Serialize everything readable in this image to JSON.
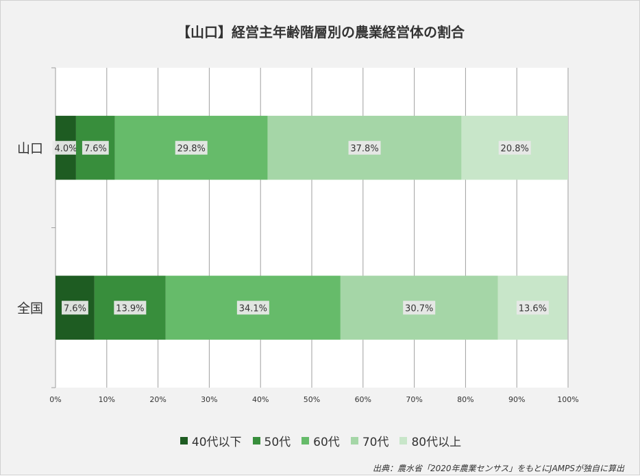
{
  "chart_data": {
    "type": "bar",
    "orientation": "horizontal",
    "stacked": true,
    "percent": true,
    "title": "【山口】経営主年齢階層別の農業経営体の割合",
    "categories": [
      "山口",
      "全国"
    ],
    "series": [
      {
        "name": "40代以下",
        "values": [
          4.0,
          7.6
        ],
        "labels": [
          "4.0%",
          "7.6%"
        ],
        "color": "#1e5c22"
      },
      {
        "name": "50代",
        "values": [
          7.6,
          13.9
        ],
        "labels": [
          "7.6%",
          "13.9%"
        ],
        "color": "#388e3c"
      },
      {
        "name": "60代",
        "values": [
          29.8,
          34.1
        ],
        "labels": [
          "29.8%",
          "34.1%"
        ],
        "color": "#66bb6a"
      },
      {
        "name": "70代",
        "values": [
          37.8,
          30.7
        ],
        "labels": [
          "37.8%",
          "30.7%"
        ],
        "color": "#a5d6a7"
      },
      {
        "name": "80代以上",
        "values": [
          20.8,
          13.6
        ],
        "labels": [
          "20.8%",
          "13.6%"
        ],
        "color": "#c8e6c9"
      }
    ],
    "xlim": [
      0,
      100
    ],
    "xticks": [
      "0%",
      "10%",
      "20%",
      "30%",
      "40%",
      "50%",
      "60%",
      "70%",
      "80%",
      "90%",
      "100%"
    ],
    "grid": true,
    "legend": "bottom",
    "source": "出典：農水省「2020年農業センサス」をもとにJAMPSが独自に算出"
  }
}
